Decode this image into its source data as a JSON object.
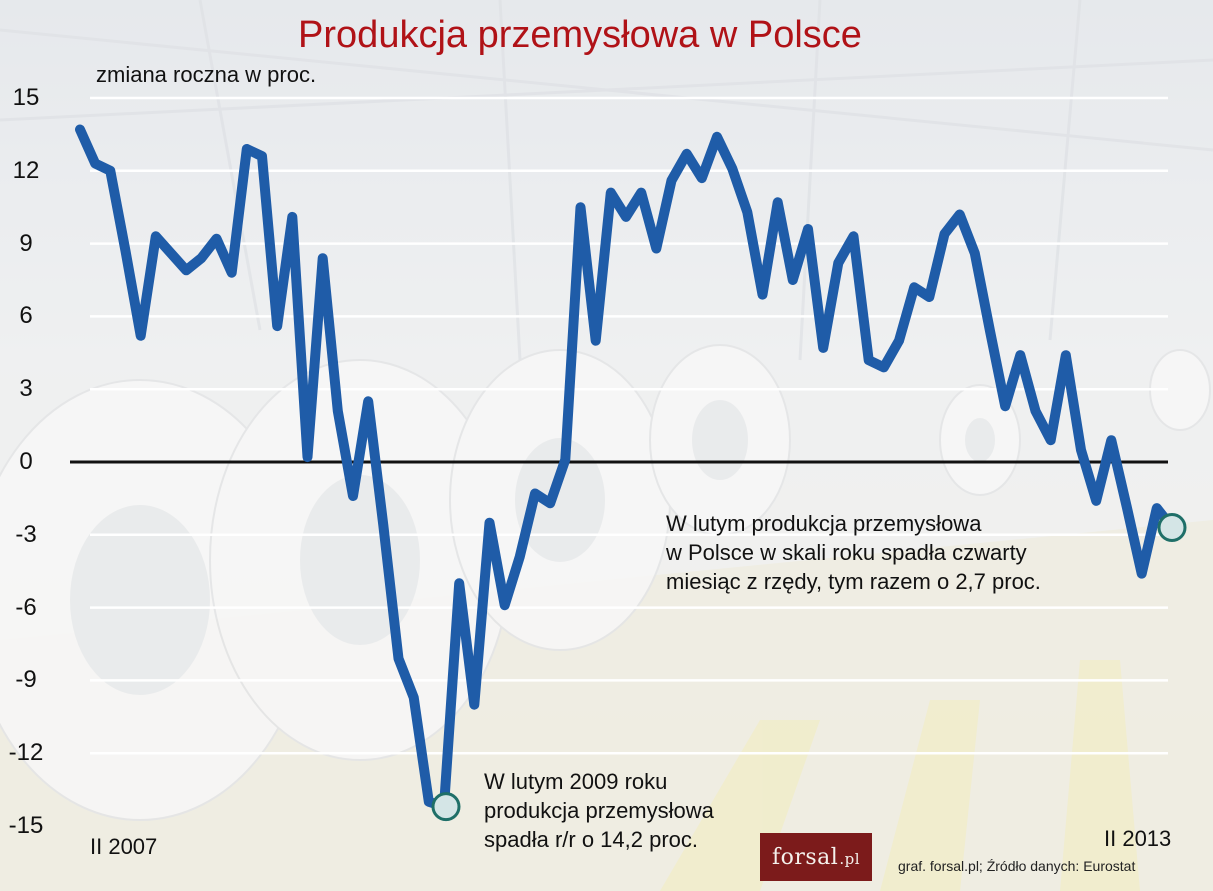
{
  "title": "Produkcja przemysłowa w Polsce",
  "subtitle": "zmiana roczna w proc.",
  "colors": {
    "title": "#b01217",
    "line": "#1f5ca8",
    "marker_fill": "#d4e5e6",
    "marker_stroke": "#1f6f68"
  },
  "x_start_label": "II 2007",
  "x_end_label": "II 2013",
  "annotation_low": [
    "W lutym 2009 roku",
    "produkcja przemysłowa",
    "spadła r/r o 14,2 proc."
  ],
  "annotation_last": [
    "W lutym produkcja przemysłowa",
    "w Polsce w skali roku spadła czwarty",
    "miesiąc z rzędy, tym razem o 2,7 proc."
  ],
  "logo": {
    "main": "forsal",
    "suffix": ".pl"
  },
  "source": "graf. forsal.pl;   Źródło danych: Eurostat",
  "chart_data": {
    "type": "line",
    "title": "Produkcja przemysłowa w Polsce",
    "ylabel": "zmiana roczna w proc.",
    "ylim": [
      -15,
      15
    ],
    "yticks": [
      15,
      12,
      9,
      6,
      3,
      0,
      -3,
      -6,
      -9,
      -12,
      -15
    ],
    "grid": true,
    "x_range": [
      "II 2007",
      "II 2013"
    ],
    "series": [
      {
        "values": [
          13.7,
          12.3,
          12.0,
          8.7,
          5.2,
          9.3,
          8.6,
          7.9,
          8.4,
          9.2,
          7.8,
          12.9,
          12.6,
          5.6,
          10.1,
          0.2,
          8.4,
          2.1,
          -1.4,
          2.5,
          -2.6,
          -8.1,
          -9.7,
          -14.0,
          -14.2,
          -5.0,
          -10.0,
          -2.5,
          -5.9,
          -3.9,
          -1.3,
          -1.7,
          0.1,
          10.5,
          5.0,
          11.1,
          10.1,
          11.1,
          8.8,
          11.6,
          12.7,
          11.7,
          13.4,
          12.1,
          10.3,
          6.9,
          10.7,
          7.5,
          9.6,
          4.7,
          8.2,
          9.3,
          4.2,
          3.9,
          5.0,
          7.2,
          6.8,
          9.4,
          10.2,
          8.6,
          5.4,
          2.3,
          4.4,
          2.1,
          0.9,
          4.4,
          0.5,
          -1.6,
          0.9,
          -1.8,
          -4.6,
          -1.9,
          -2.7
        ]
      }
    ],
    "highlight_points": [
      {
        "label": "II 2009",
        "value": -14.2
      },
      {
        "label": "II 2013",
        "value": -2.7
      }
    ]
  }
}
